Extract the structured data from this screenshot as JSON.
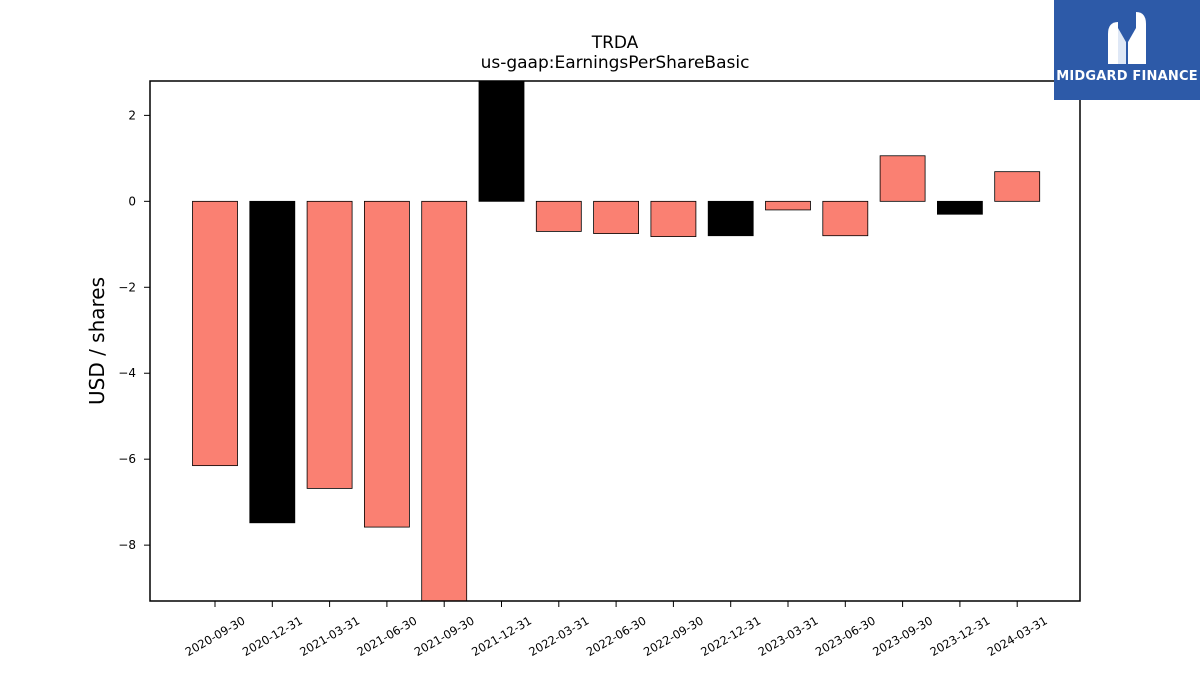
{
  "chart_data": {
    "type": "bar",
    "title": "TRDA",
    "subtitle": "us-gaap:EarningsPerShareBasic",
    "xlabel": "",
    "ylabel": "USD / shares",
    "categories": [
      "2020-09-30",
      "2020-12-31",
      "2021-03-31",
      "2021-06-30",
      "2021-09-30",
      "2021-12-31",
      "2022-03-31",
      "2022-06-30",
      "2022-09-30",
      "2022-12-31",
      "2023-03-31",
      "2023-06-30",
      "2023-09-30",
      "2023-12-31",
      "2024-03-31"
    ],
    "values": [
      -6.15,
      -7.48,
      -6.68,
      -7.58,
      -9.3,
      2.8,
      -0.7,
      -0.75,
      -0.82,
      -0.8,
      -0.2,
      -0.8,
      1.06,
      -0.3,
      0.69
    ],
    "bar_colors": [
      "#fa8072",
      "#000000",
      "#fa8072",
      "#fa8072",
      "#fa8072",
      "#000000",
      "#fa8072",
      "#fa8072",
      "#fa8072",
      "#000000",
      "#fa8072",
      "#fa8072",
      "#fa8072",
      "#000000",
      "#fa8072"
    ],
    "yticks": [
      2,
      0,
      -2,
      -4,
      -6,
      -8
    ],
    "ylim": [
      -9.3,
      2.8
    ],
    "grid": false,
    "legend": "none"
  },
  "logo": {
    "text": "MIDGARD FINANCE",
    "bg": "#2d5aa8"
  }
}
